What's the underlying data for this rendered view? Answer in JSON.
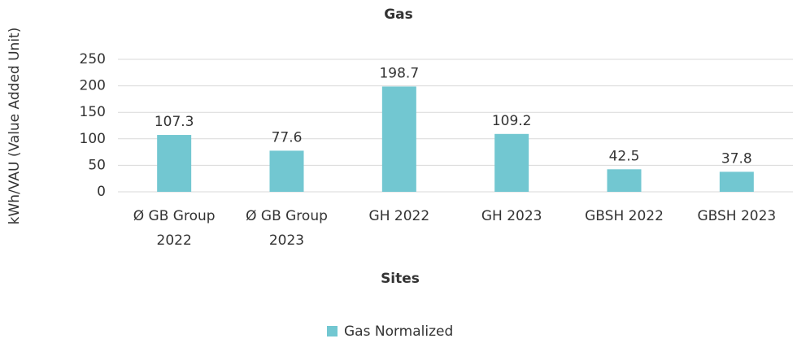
{
  "chart_data": {
    "type": "bar",
    "title": "Gas",
    "y_label": "kWh/VAU (Value Added Unit)",
    "x_label": "Sites",
    "categories": [
      "Ø GB Group 2022",
      "Ø GB Group 2023",
      "GH 2022",
      "GH 2023",
      "GBSH 2022",
      "GBSH 2023"
    ],
    "series": [
      {
        "name": "Gas Normalized",
        "color": "#72c7d1",
        "values": [
          107.3,
          77.6,
          198.7,
          109.2,
          42.5,
          37.8
        ]
      }
    ],
    "ylim": [
      0,
      250
    ],
    "yticks": [
      0,
      50,
      100,
      150,
      200,
      250
    ],
    "grid": true,
    "legend": "bottom"
  }
}
